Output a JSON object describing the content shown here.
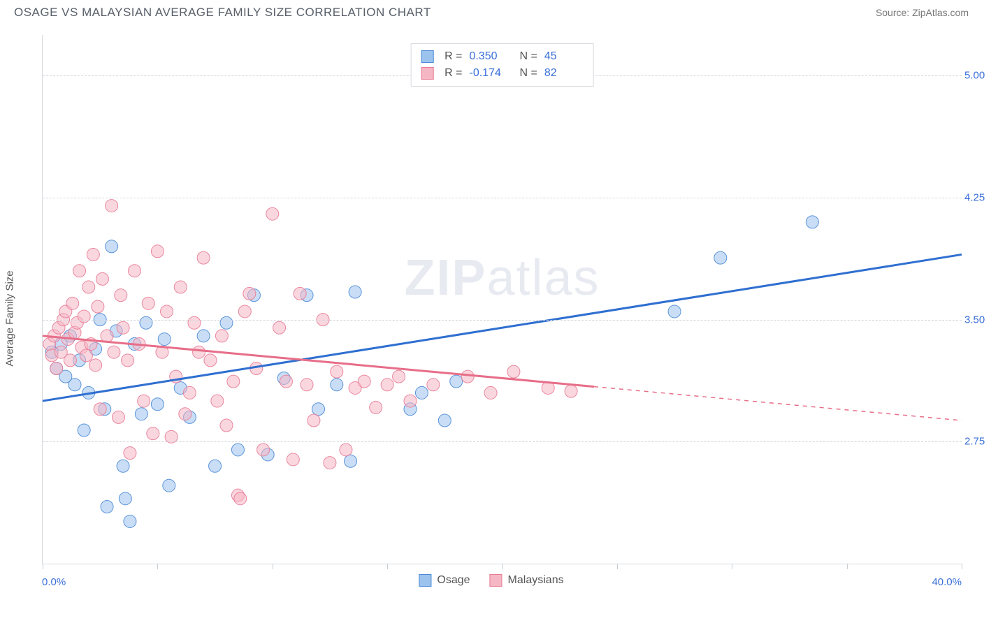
{
  "header": {
    "title": "OSAGE VS MALAYSIAN AVERAGE FAMILY SIZE CORRELATION CHART",
    "source": "Source: ZipAtlas.com"
  },
  "ylabel": "Average Family Size",
  "watermark_a": "ZIP",
  "watermark_b": "atlas",
  "chart": {
    "type": "scatter",
    "background_color": "#ffffff",
    "grid_color": "#d4d7dc",
    "axis_color": "#d6d9de",
    "tick_label_color": "#3a6fd8",
    "xlim": [
      0,
      40
    ],
    "ylim": [
      2.0,
      5.25
    ],
    "yticks": [
      2.75,
      3.5,
      4.25,
      5.0
    ],
    "ytick_labels": [
      "2.75",
      "3.50",
      "4.25",
      "5.00"
    ],
    "xticks": [
      0,
      5,
      10,
      15,
      20,
      25,
      30,
      35,
      40
    ],
    "xaxis_start_label": "0.0%",
    "xaxis_end_label": "40.0%",
    "marker_radius": 9,
    "marker_opacity": 0.55,
    "marker_stroke_opacity": 0.9,
    "trend_width": 3
  },
  "series": [
    {
      "name": "Osage",
      "color_fill": "#9cc3ee",
      "color_stroke": "#4b8ad6",
      "trend_color": "#2f6fd0",
      "r_label": "R =",
      "r_value": "0.350",
      "n_label": "N =",
      "n_value": "45",
      "trend": {
        "x1": 0,
        "y1": 3.0,
        "x2": 40,
        "y2": 3.9,
        "dash_from_x": 40
      },
      "points": [
        [
          0.4,
          3.3
        ],
        [
          0.6,
          3.2
        ],
        [
          0.8,
          3.35
        ],
        [
          1.0,
          3.15
        ],
        [
          1.2,
          3.4
        ],
        [
          1.4,
          3.1
        ],
        [
          1.6,
          3.25
        ],
        [
          1.8,
          2.82
        ],
        [
          2.0,
          3.05
        ],
        [
          2.3,
          3.32
        ],
        [
          2.5,
          3.5
        ],
        [
          2.7,
          2.95
        ],
        [
          2.8,
          2.35
        ],
        [
          3.0,
          3.95
        ],
        [
          3.2,
          3.43
        ],
        [
          3.5,
          2.6
        ],
        [
          3.6,
          2.4
        ],
        [
          3.8,
          2.26
        ],
        [
          4.0,
          3.35
        ],
        [
          4.3,
          2.92
        ],
        [
          4.5,
          3.48
        ],
        [
          5.0,
          2.98
        ],
        [
          5.3,
          3.38
        ],
        [
          5.5,
          2.48
        ],
        [
          6.0,
          3.08
        ],
        [
          6.4,
          2.9
        ],
        [
          7.0,
          3.4
        ],
        [
          7.5,
          2.6
        ],
        [
          8.0,
          3.48
        ],
        [
          8.5,
          2.7
        ],
        [
          9.2,
          3.65
        ],
        [
          9.8,
          2.67
        ],
        [
          10.5,
          3.14
        ],
        [
          11.5,
          3.65
        ],
        [
          12.0,
          2.95
        ],
        [
          12.8,
          3.1
        ],
        [
          13.4,
          2.63
        ],
        [
          13.6,
          3.67
        ],
        [
          16.0,
          2.95
        ],
        [
          16.5,
          3.05
        ],
        [
          17.5,
          2.88
        ],
        [
          18.0,
          3.12
        ],
        [
          27.5,
          3.55
        ],
        [
          29.5,
          3.88
        ],
        [
          33.5,
          4.1
        ]
      ]
    },
    {
      "name": "Malaysians",
      "color_fill": "#f5b7c4",
      "color_stroke": "#e87b95",
      "trend_color": "#e76e89",
      "r_label": "R =",
      "r_value": "-0.174",
      "n_label": "N =",
      "n_value": "82",
      "trend": {
        "x1": 0,
        "y1": 3.4,
        "x2": 40,
        "y2": 2.88,
        "dash_from_x": 24
      },
      "points": [
        [
          0.3,
          3.35
        ],
        [
          0.4,
          3.28
        ],
        [
          0.5,
          3.4
        ],
        [
          0.6,
          3.2
        ],
        [
          0.7,
          3.45
        ],
        [
          0.8,
          3.3
        ],
        [
          0.9,
          3.5
        ],
        [
          1.0,
          3.55
        ],
        [
          1.1,
          3.38
        ],
        [
          1.2,
          3.25
        ],
        [
          1.3,
          3.6
        ],
        [
          1.4,
          3.42
        ],
        [
          1.5,
          3.48
        ],
        [
          1.6,
          3.8
        ],
        [
          1.7,
          3.33
        ],
        [
          1.8,
          3.52
        ],
        [
          1.9,
          3.28
        ],
        [
          2.0,
          3.7
        ],
        [
          2.1,
          3.35
        ],
        [
          2.2,
          3.9
        ],
        [
          2.3,
          3.22
        ],
        [
          2.4,
          3.58
        ],
        [
          2.5,
          2.95
        ],
        [
          2.6,
          3.75
        ],
        [
          2.8,
          3.4
        ],
        [
          3.0,
          4.2
        ],
        [
          3.1,
          3.3
        ],
        [
          3.3,
          2.9
        ],
        [
          3.4,
          3.65
        ],
        [
          3.5,
          3.45
        ],
        [
          3.7,
          3.25
        ],
        [
          3.8,
          2.68
        ],
        [
          4.0,
          3.8
        ],
        [
          4.2,
          3.35
        ],
        [
          4.4,
          3.0
        ],
        [
          4.6,
          3.6
        ],
        [
          4.8,
          2.8
        ],
        [
          5.0,
          3.92
        ],
        [
          5.2,
          3.3
        ],
        [
          5.4,
          3.55
        ],
        [
          5.6,
          2.78
        ],
        [
          5.8,
          3.15
        ],
        [
          6.0,
          3.7
        ],
        [
          6.2,
          2.92
        ],
        [
          6.4,
          3.05
        ],
        [
          6.6,
          3.48
        ],
        [
          6.8,
          3.3
        ],
        [
          7.0,
          3.88
        ],
        [
          7.3,
          3.25
        ],
        [
          7.6,
          3.0
        ],
        [
          7.8,
          3.4
        ],
        [
          8.0,
          2.85
        ],
        [
          8.3,
          3.12
        ],
        [
          8.5,
          2.42
        ],
        [
          8.6,
          2.4
        ],
        [
          8.8,
          3.55
        ],
        [
          9.0,
          3.66
        ],
        [
          9.3,
          3.2
        ],
        [
          9.6,
          2.7
        ],
        [
          10.0,
          4.15
        ],
        [
          10.3,
          3.45
        ],
        [
          10.6,
          3.12
        ],
        [
          10.9,
          2.64
        ],
        [
          11.2,
          3.66
        ],
        [
          11.5,
          3.1
        ],
        [
          11.8,
          2.88
        ],
        [
          12.2,
          3.5
        ],
        [
          12.5,
          2.62
        ],
        [
          12.8,
          3.18
        ],
        [
          13.2,
          2.7
        ],
        [
          13.6,
          3.08
        ],
        [
          14.0,
          3.12
        ],
        [
          14.5,
          2.96
        ],
        [
          15.0,
          3.1
        ],
        [
          15.5,
          3.15
        ],
        [
          16.0,
          3.0
        ],
        [
          17.0,
          3.1
        ],
        [
          18.5,
          3.15
        ],
        [
          19.5,
          3.05
        ],
        [
          20.5,
          3.18
        ],
        [
          22.0,
          3.08
        ],
        [
          23.0,
          3.06
        ]
      ]
    }
  ],
  "legend_bottom": [
    {
      "label": "Osage",
      "fill": "#9cc3ee",
      "stroke": "#4b8ad6"
    },
    {
      "label": "Malaysians",
      "fill": "#f5b7c4",
      "stroke": "#e87b95"
    }
  ]
}
